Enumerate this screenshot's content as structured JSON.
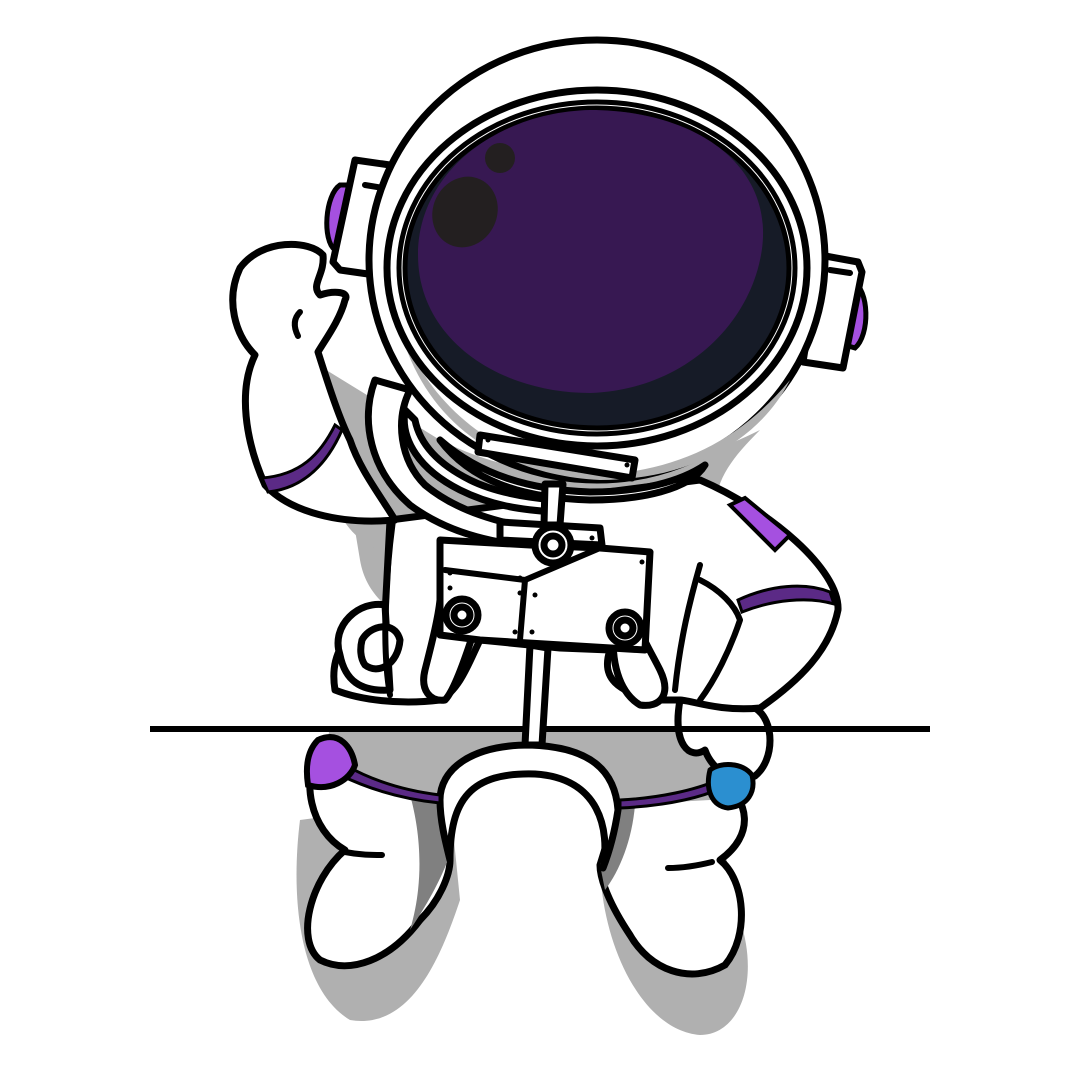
{
  "illustration": {
    "subject": "astronaut",
    "icon_name": "astronaut-icon"
  },
  "palette": {
    "background": "#ffffff",
    "outline": "#000000",
    "suit": "#ffffff",
    "shadow": "#b0b0b0",
    "shadow_dark": "#808080",
    "visor": "#371852",
    "visor_rim": "#161b27",
    "visor_spot": "#231f20",
    "accent_purple": "#a550e0",
    "accent_purple_dark": "#5b2a86",
    "accent_blue": "#2b8fd0"
  }
}
